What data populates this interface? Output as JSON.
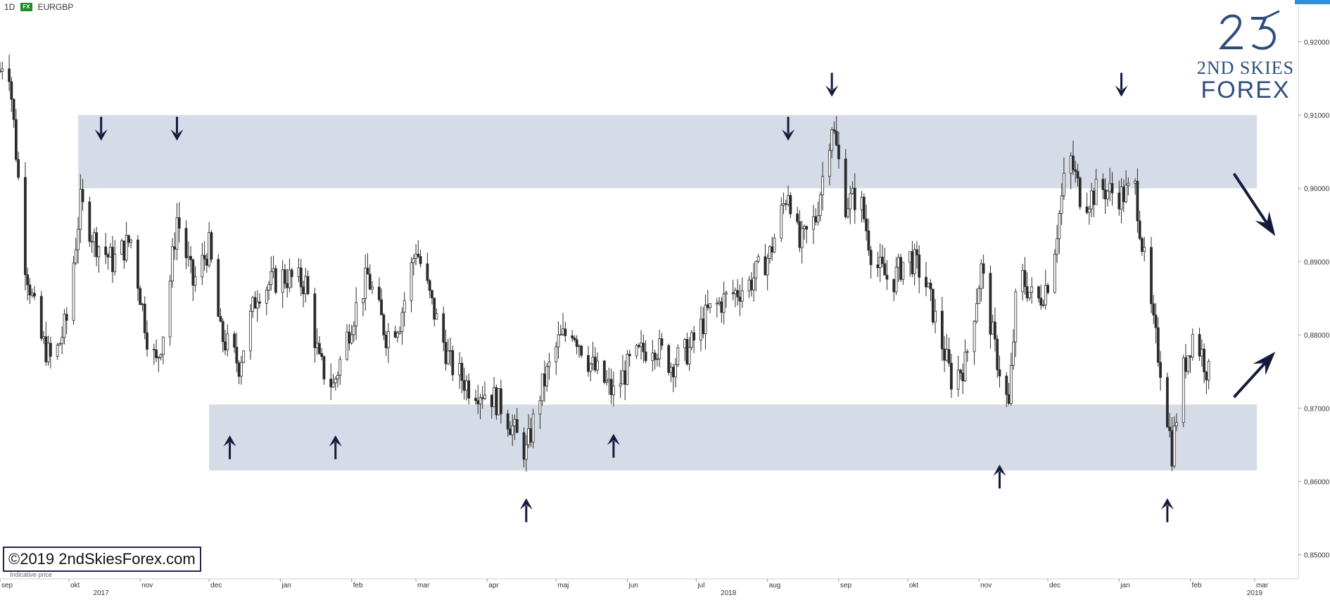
{
  "header": {
    "interval": "1D",
    "exchange_badge": "FX",
    "symbol": "EURGBP"
  },
  "logo": {
    "line1": "2ND SKIES",
    "line2": "FOREX"
  },
  "copyright": "©2019 2ndSkiesForex.com",
  "indicative_label": "Indicative price",
  "colors": {
    "zone": "#d5dce7",
    "candle_up": "#ffffff",
    "candle_down": "#2b2b2b",
    "wick": "#2b2b2b",
    "arrow": "#141a3e",
    "logo": "#2c4d7c"
  },
  "chart_data": {
    "type": "candlestick",
    "title": "",
    "symbol": "EURGBP",
    "interval": "1D",
    "y_axis": {
      "ticks": [
        "0,92000",
        "0,91000",
        "0,90000",
        "0,89000",
        "0,88000",
        "0,87000",
        "0,86000",
        "0,85000"
      ],
      "tick_values": [
        0.92,
        0.91,
        0.9,
        0.89,
        0.88,
        0.87,
        0.86,
        0.85
      ],
      "range": [
        0.8467,
        0.9257
      ]
    },
    "x_axis": {
      "month_labels": [
        {
          "label": "sep",
          "date": "2016-09-01"
        },
        {
          "label": "okt",
          "date": "2016-10-01"
        },
        {
          "label": "nov",
          "date": "2016-11-01"
        },
        {
          "label": "dec",
          "date": "2016-12-01"
        },
        {
          "label": "jan",
          "date": "2017-01-01"
        },
        {
          "label": "feb",
          "date": "2017-02-01"
        },
        {
          "label": "mar",
          "date": "2017-03-01"
        },
        {
          "label": "apr",
          "date": "2017-04-01"
        },
        {
          "label": "maj",
          "date": "2017-05-01"
        },
        {
          "label": "jun",
          "date": "2017-06-01"
        },
        {
          "label": "jul",
          "date": "2017-07-01"
        },
        {
          "label": "aug",
          "date": "2017-08-01"
        },
        {
          "label": "sep",
          "date": "2017-09-01"
        },
        {
          "label": "okt",
          "date": "2017-10-01"
        },
        {
          "label": "nov",
          "date": "2017-11-01"
        },
        {
          "label": "dec",
          "date": "2017-12-01"
        },
        {
          "label": "jan",
          "date": "2018-01-01"
        },
        {
          "label": "feb",
          "date": "2018-02-01"
        },
        {
          "label": "mar",
          "date": "2018-03-01"
        }
      ],
      "year_labels": [
        {
          "label": "2017",
          "date": "2016-10-15"
        },
        {
          "label": "2018",
          "date": "2017-07-15"
        },
        {
          "label": "2019",
          "date": "2018-03-01"
        }
      ],
      "range": [
        "2016-09-01",
        "2018-03-20"
      ]
    },
    "zones": [
      {
        "name": "resistance",
        "from_date": "2016-10-05",
        "to_date": "2018-03-02",
        "low": 0.9,
        "high": 0.91
      },
      {
        "name": "support",
        "from_date": "2016-12-01",
        "to_date": "2018-03-02",
        "low": 0.8615,
        "high": 0.8705
      }
    ],
    "arrow_markers": [
      {
        "direction": "down",
        "date": "2016-10-15",
        "price": 0.9065
      },
      {
        "direction": "down",
        "date": "2016-11-17",
        "price": 0.9065
      },
      {
        "direction": "up",
        "date": "2016-12-10",
        "price": 0.8663
      },
      {
        "direction": "up",
        "date": "2017-01-25",
        "price": 0.8663
      },
      {
        "direction": "up",
        "date": "2017-04-18",
        "price": 0.8577
      },
      {
        "direction": "up",
        "date": "2017-05-26",
        "price": 0.8665
      },
      {
        "direction": "down",
        "date": "2017-08-10",
        "price": 0.9065
      },
      {
        "direction": "down",
        "date": "2017-08-29",
        "price": 0.9125
      },
      {
        "direction": "up",
        "date": "2017-11-10",
        "price": 0.8623
      },
      {
        "direction": "down",
        "date": "2018-01-02",
        "price": 0.9125
      },
      {
        "direction": "up",
        "date": "2018-01-22",
        "price": 0.8577
      }
    ],
    "projection_arrows": [
      {
        "direction": "down",
        "from": {
          "date": "2018-02-20",
          "price": 0.902
        },
        "to": {
          "date": "2018-03-10",
          "price": 0.8935
        }
      },
      {
        "direction": "up",
        "from": {
          "date": "2018-02-20",
          "price": 0.8715
        },
        "to": {
          "date": "2018-03-10",
          "price": 0.8777
        }
      }
    ],
    "series": [
      {
        "name": "EURGBP",
        "anchors": [
          [
            "2016-09-01",
            0.916
          ],
          [
            "2016-09-04",
            0.92
          ],
          [
            "2016-09-08",
            0.905
          ],
          [
            "2016-09-12",
            0.89
          ],
          [
            "2016-09-18",
            0.88
          ],
          [
            "2016-09-24",
            0.876
          ],
          [
            "2016-09-30",
            0.882
          ],
          [
            "2016-10-06",
            0.898
          ],
          [
            "2016-10-12",
            0.893
          ],
          [
            "2016-10-20",
            0.89
          ],
          [
            "2016-10-28",
            0.893
          ],
          [
            "2016-11-04",
            0.88
          ],
          [
            "2016-11-08",
            0.876
          ],
          [
            "2016-11-12",
            0.882
          ],
          [
            "2016-11-17",
            0.896
          ],
          [
            "2016-11-24",
            0.887
          ],
          [
            "2016-12-01",
            0.892
          ],
          [
            "2016-12-06",
            0.88
          ],
          [
            "2016-12-14",
            0.876
          ],
          [
            "2016-12-22",
            0.886
          ],
          [
            "2017-01-02",
            0.888
          ],
          [
            "2017-01-12",
            0.887
          ],
          [
            "2017-01-18",
            0.876
          ],
          [
            "2017-01-24",
            0.873
          ],
          [
            "2017-02-01",
            0.882
          ],
          [
            "2017-02-08",
            0.888
          ],
          [
            "2017-02-16",
            0.88
          ],
          [
            "2017-02-22",
            0.882
          ],
          [
            "2017-03-01",
            0.892
          ],
          [
            "2017-03-08",
            0.884
          ],
          [
            "2017-03-16",
            0.876
          ],
          [
            "2017-03-24",
            0.873
          ],
          [
            "2017-04-02",
            0.872
          ],
          [
            "2017-04-08",
            0.87
          ],
          [
            "2017-04-14",
            0.866
          ],
          [
            "2017-04-18",
            0.864
          ],
          [
            "2017-04-24",
            0.872
          ],
          [
            "2017-05-02",
            0.879
          ],
          [
            "2017-05-08",
            0.881
          ],
          [
            "2017-05-16",
            0.876
          ],
          [
            "2017-05-26",
            0.872
          ],
          [
            "2017-06-02",
            0.876
          ],
          [
            "2017-06-12",
            0.879
          ],
          [
            "2017-06-20",
            0.876
          ],
          [
            "2017-06-28",
            0.878
          ],
          [
            "2017-07-06",
            0.883
          ],
          [
            "2017-07-14",
            0.885
          ],
          [
            "2017-07-24",
            0.887
          ],
          [
            "2017-08-02",
            0.891
          ],
          [
            "2017-08-10",
            0.9
          ],
          [
            "2017-08-15",
            0.892
          ],
          [
            "2017-08-22",
            0.896
          ],
          [
            "2017-08-29",
            0.909
          ],
          [
            "2017-09-04",
            0.898
          ],
          [
            "2017-09-10",
            0.899
          ],
          [
            "2017-09-16",
            0.89
          ],
          [
            "2017-09-24",
            0.887
          ],
          [
            "2017-10-01",
            0.891
          ],
          [
            "2017-10-08",
            0.888
          ],
          [
            "2017-10-14",
            0.881
          ],
          [
            "2017-10-20",
            0.874
          ],
          [
            "2017-10-26",
            0.876
          ],
          [
            "2017-11-02",
            0.889
          ],
          [
            "2017-11-08",
            0.878
          ],
          [
            "2017-11-14",
            0.87
          ],
          [
            "2017-11-18",
            0.889
          ],
          [
            "2017-11-26",
            0.884
          ],
          [
            "2017-12-02",
            0.888
          ],
          [
            "2017-12-10",
            0.905
          ],
          [
            "2017-12-16",
            0.898
          ],
          [
            "2017-12-24",
            0.9
          ],
          [
            "2018-01-02",
            0.899
          ],
          [
            "2018-01-08",
            0.9
          ],
          [
            "2018-01-12",
            0.89
          ],
          [
            "2018-01-16",
            0.881
          ],
          [
            "2018-01-20",
            0.874
          ],
          [
            "2018-01-24",
            0.864
          ],
          [
            "2018-01-28",
            0.874
          ],
          [
            "2018-02-02",
            0.88
          ],
          [
            "2018-02-06",
            0.8775
          ],
          [
            "2018-02-09",
            0.8745
          ]
        ]
      }
    ]
  }
}
